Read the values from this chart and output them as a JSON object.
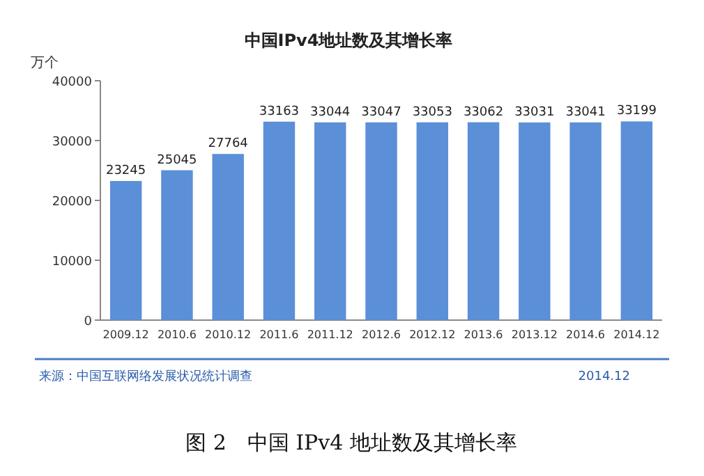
{
  "chart_data": {
    "type": "bar",
    "title": "中国IPv4地址数及其增长率",
    "ylabel": "万个",
    "categories": [
      "2009.12",
      "2010.6",
      "2010.12",
      "2011.6",
      "2011.12",
      "2012.6",
      "2012.12",
      "2013.6",
      "2013.12",
      "2014.6",
      "2014.12"
    ],
    "values": [
      23245,
      25045,
      27764,
      33163,
      33044,
      33047,
      33053,
      33062,
      33031,
      33041,
      33199
    ],
    "color": "#5b8fd8",
    "ylim": [
      0,
      40000
    ],
    "yticks": [
      0,
      10000,
      20000,
      30000,
      40000
    ],
    "data_labels": true,
    "annotations": [
      "来源：中国互联网络发展状况统计调查",
      "2014.12",
      "图 2　中国 IPv4 地址数及其增长率"
    ]
  }
}
